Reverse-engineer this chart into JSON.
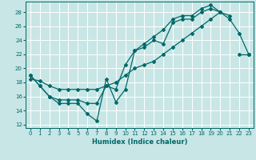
{
  "xlabel": "Humidex (Indice chaleur)",
  "ylabel": "",
  "xlim": [
    -0.5,
    23.5
  ],
  "ylim": [
    11.5,
    29.5
  ],
  "background_color": "#c8e6e6",
  "grid_color": "#ffffff",
  "line_color": "#006868",
  "xticks": [
    0,
    1,
    2,
    3,
    4,
    5,
    6,
    7,
    8,
    9,
    10,
    11,
    12,
    13,
    14,
    15,
    16,
    17,
    18,
    19,
    20,
    21,
    22,
    23
  ],
  "yticks": [
    12,
    14,
    16,
    18,
    20,
    22,
    24,
    26,
    28
  ],
  "line1_y": [
    19,
    17.5,
    16,
    15,
    15,
    15,
    13.5,
    12.5,
    18.5,
    15.2,
    17,
    22.5,
    23,
    24,
    23.5,
    26.5,
    27,
    27,
    28,
    28.5,
    28,
    27,
    25,
    22
  ],
  "line2_y": [
    19,
    17.5,
    16,
    15.5,
    15.5,
    15.5,
    15,
    15,
    17.5,
    17,
    20.5,
    22.5,
    23.5,
    24.5,
    25.5,
    27,
    27.5,
    27.5,
    28.5,
    29,
    28,
    27.5,
    null,
    22
  ],
  "line3_y": [
    18.5,
    18.2,
    17.5,
    17,
    17,
    17,
    17,
    17,
    17.5,
    18,
    19,
    20,
    20.5,
    21,
    22,
    23,
    24,
    25,
    26,
    27,
    28,
    null,
    22,
    22
  ]
}
